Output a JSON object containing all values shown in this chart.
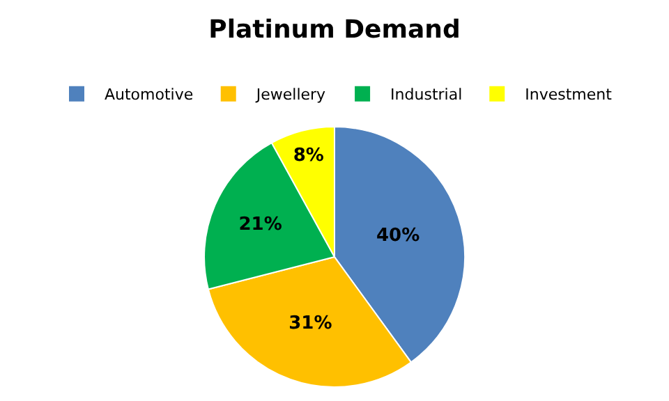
{
  "chart_data": {
    "type": "pie",
    "title": "Platinum Demand",
    "categories": [
      "Automotive",
      "Jewellery",
      "Industrial",
      "Investment"
    ],
    "values": [
      40,
      31,
      21,
      8
    ],
    "colors": [
      "#4f81bd",
      "#ffc000",
      "#00b050",
      "#ffff00"
    ],
    "value_labels": [
      "40%",
      "31%",
      "21%",
      "8%"
    ],
    "legend": "top"
  }
}
